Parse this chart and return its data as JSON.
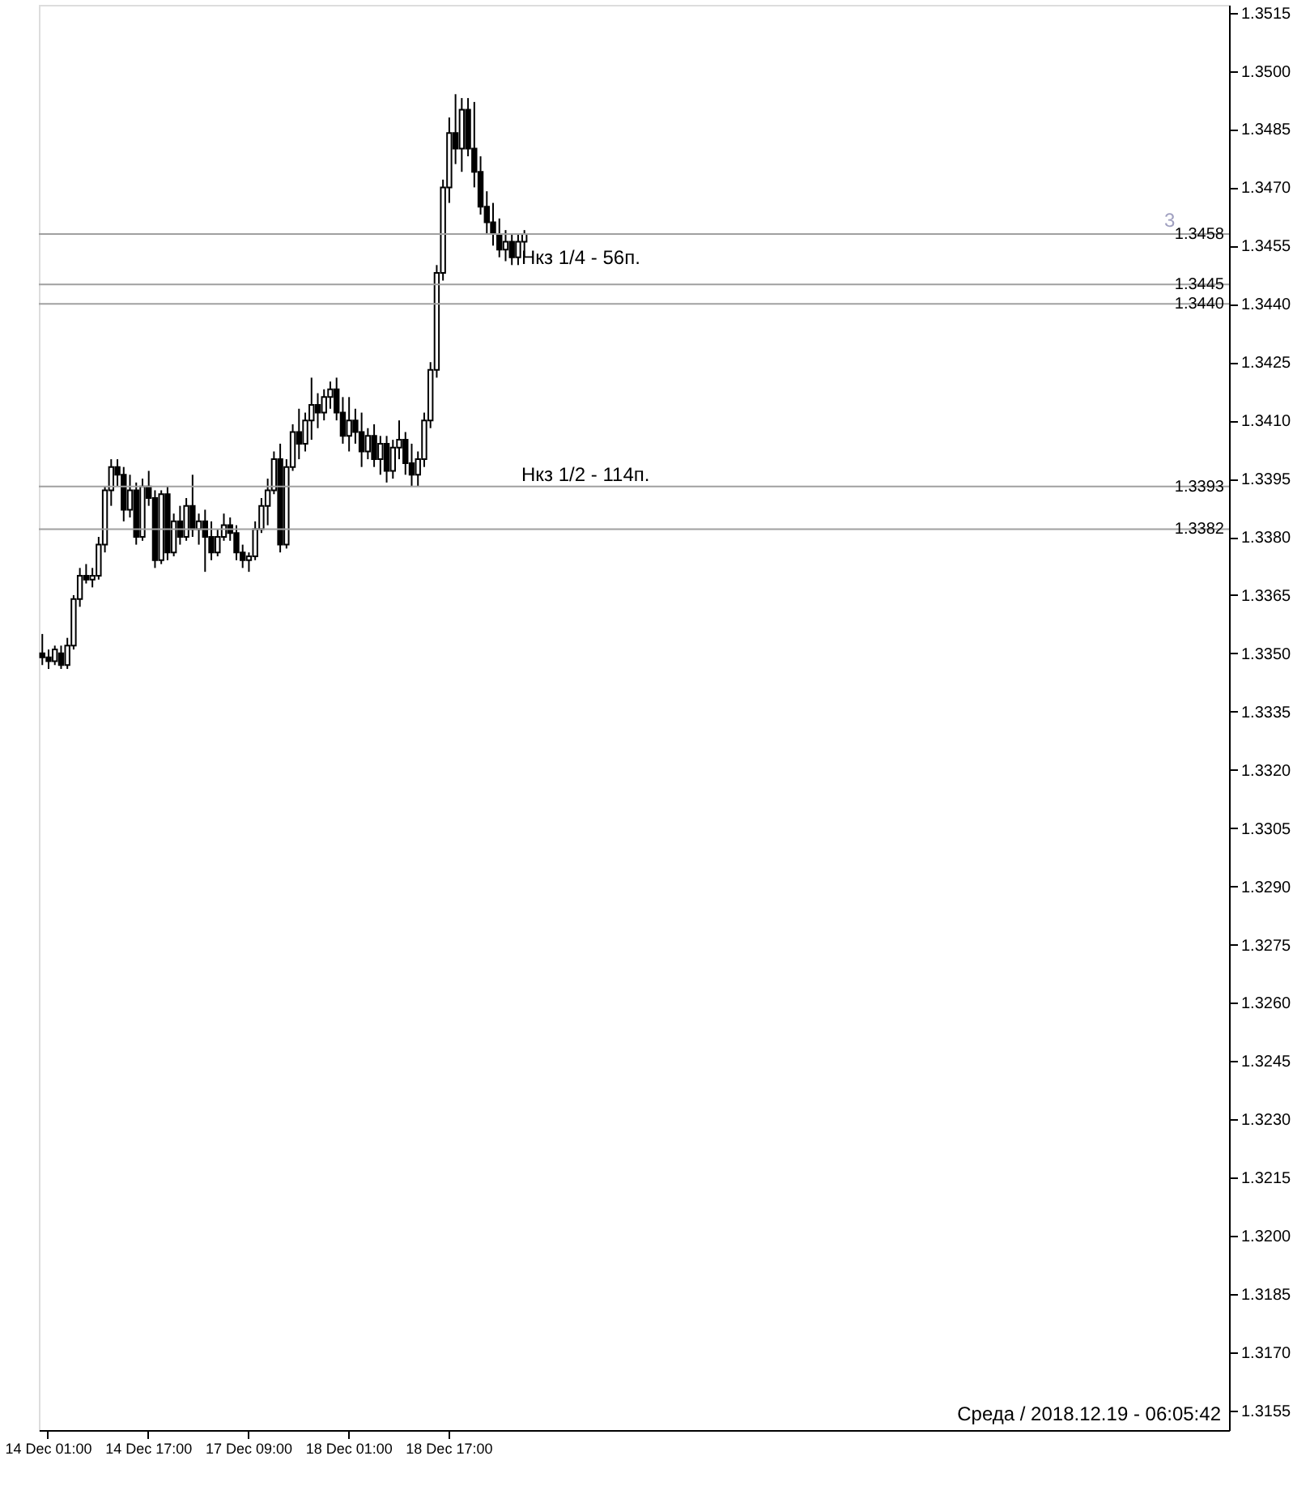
{
  "chart_data": {
    "type": "candlestick",
    "categories": [
      null,
      "14 Dec 01:00",
      null,
      null,
      null,
      null,
      null,
      null,
      null,
      null,
      null,
      null,
      null,
      null,
      null,
      null,
      null,
      "14 Dec 17:00",
      null,
      null,
      null,
      null,
      null,
      null,
      null,
      null,
      null,
      null,
      null,
      null,
      null,
      null,
      null,
      "17 Dec 09:00",
      null,
      null,
      null,
      null,
      null,
      null,
      null,
      null,
      null,
      null,
      null,
      null,
      null,
      null,
      null,
      "18 Dec 01:00",
      null,
      null,
      null,
      null,
      null,
      null,
      null,
      null,
      null,
      null,
      null,
      null,
      null,
      null,
      null,
      "18 Dec 17:00",
      null,
      null,
      null,
      null,
      null,
      null,
      null,
      null,
      null,
      null,
      null,
      null,
      null,
      null,
      null,
      null,
      null,
      null,
      null,
      null,
      null,
      null,
      null,
      null,
      null,
      null,
      null,
      null,
      null,
      null,
      null,
      null,
      null,
      null,
      null,
      null,
      null,
      null,
      null,
      null,
      null,
      null,
      null,
      null,
      null,
      null,
      null,
      null,
      null,
      null,
      null,
      null,
      null,
      null,
      null,
      null,
      null,
      null,
      null,
      null,
      null,
      null,
      null,
      null,
      null,
      null,
      null,
      null,
      null,
      null,
      null,
      null,
      null,
      null,
      null,
      null,
      null,
      null,
      null,
      null,
      null,
      null,
      null,
      null,
      null,
      null,
      null,
      null,
      null,
      null,
      null,
      null,
      null,
      null,
      null,
      null,
      null,
      null,
      null,
      null,
      null,
      null,
      null,
      null,
      null,
      null,
      null,
      null,
      null,
      null,
      null,
      null,
      null,
      null,
      null,
      null,
      null,
      null,
      null,
      null,
      null,
      null,
      null,
      null
    ],
    "ohlc": [
      [
        1.335,
        1.3355,
        1.3347,
        1.3349
      ],
      [
        1.3349,
        1.3351,
        1.3346,
        1.3348
      ],
      [
        1.3348,
        1.3352,
        1.3347,
        1.3351
      ],
      [
        1.335,
        1.3352,
        1.3346,
        1.3347
      ],
      [
        1.3347,
        1.3354,
        1.3346,
        1.3352
      ],
      [
        1.3352,
        1.3365,
        1.3351,
        1.3364
      ],
      [
        1.3364,
        1.3372,
        1.3362,
        1.337
      ],
      [
        1.337,
        1.3373,
        1.3368,
        1.3369
      ],
      [
        1.3369,
        1.3372,
        1.3367,
        1.337
      ],
      [
        1.337,
        1.338,
        1.3369,
        1.3378
      ],
      [
        1.3378,
        1.3393,
        1.3376,
        1.3392
      ],
      [
        1.3392,
        1.34,
        1.3388,
        1.3398
      ],
      [
        1.3398,
        1.34,
        1.3393,
        1.3396
      ],
      [
        1.3396,
        1.3398,
        1.3384,
        1.3387
      ],
      [
        1.3387,
        1.3396,
        1.3385,
        1.3392
      ],
      [
        1.3392,
        1.3394,
        1.3378,
        1.338
      ],
      [
        1.338,
        1.3395,
        1.3379,
        1.3393
      ],
      [
        1.3393,
        1.3397,
        1.3388,
        1.339
      ],
      [
        1.339,
        1.3392,
        1.3372,
        1.3374
      ],
      [
        1.3374,
        1.3392,
        1.3373,
        1.3391
      ],
      [
        1.3391,
        1.3393,
        1.3374,
        1.3376
      ],
      [
        1.3376,
        1.3386,
        1.3375,
        1.3384
      ],
      [
        1.3384,
        1.3388,
        1.3378,
        1.338
      ],
      [
        1.338,
        1.339,
        1.3379,
        1.3388
      ],
      [
        1.3388,
        1.3396,
        1.338,
        1.3382
      ],
      [
        1.3382,
        1.3386,
        1.3378,
        1.3384
      ],
      [
        1.3384,
        1.3387,
        1.3371,
        1.338
      ],
      [
        1.338,
        1.3384,
        1.3374,
        1.3376
      ],
      [
        1.3376,
        1.3382,
        1.3375,
        1.338
      ],
      [
        1.338,
        1.3386,
        1.3379,
        1.3383
      ],
      [
        1.3383,
        1.3385,
        1.3379,
        1.3381
      ],
      [
        1.3381,
        1.3383,
        1.3374,
        1.3376
      ],
      [
        1.3376,
        1.3378,
        1.3372,
        1.3374
      ],
      [
        1.3374,
        1.3376,
        1.3371,
        1.3375
      ],
      [
        1.3375,
        1.3384,
        1.3374,
        1.3382
      ],
      [
        1.3382,
        1.339,
        1.3381,
        1.3388
      ],
      [
        1.3388,
        1.3395,
        1.3383,
        1.3392
      ],
      [
        1.3392,
        1.3402,
        1.3391,
        1.34
      ],
      [
        1.34,
        1.3404,
        1.3376,
        1.3378
      ],
      [
        1.3378,
        1.34,
        1.3377,
        1.3398
      ],
      [
        1.3398,
        1.3409,
        1.3397,
        1.3407
      ],
      [
        1.3407,
        1.3413,
        1.34,
        1.3404
      ],
      [
        1.3404,
        1.3412,
        1.3402,
        1.341
      ],
      [
        1.341,
        1.3421,
        1.3405,
        1.3414
      ],
      [
        1.3414,
        1.3417,
        1.3408,
        1.3412
      ],
      [
        1.3412,
        1.3418,
        1.341,
        1.3416
      ],
      [
        1.3416,
        1.342,
        1.3413,
        1.3418
      ],
      [
        1.3418,
        1.3421,
        1.341,
        1.3412
      ],
      [
        1.3412,
        1.3416,
        1.3404,
        1.3406
      ],
      [
        1.3406,
        1.3416,
        1.3402,
        1.341
      ],
      [
        1.341,
        1.3413,
        1.3404,
        1.3407
      ],
      [
        1.3407,
        1.3412,
        1.3398,
        1.3402
      ],
      [
        1.3402,
        1.3408,
        1.34,
        1.3406
      ],
      [
        1.3406,
        1.3409,
        1.3398,
        1.34
      ],
      [
        1.34,
        1.3406,
        1.3396,
        1.3404
      ],
      [
        1.3404,
        1.3406,
        1.3394,
        1.3397
      ],
      [
        1.3397,
        1.3405,
        1.3395,
        1.3403
      ],
      [
        1.3403,
        1.341,
        1.34,
        1.3405
      ],
      [
        1.3405,
        1.3407,
        1.3396,
        1.3399
      ],
      [
        1.3399,
        1.3404,
        1.3393,
        1.3396
      ],
      [
        1.3396,
        1.3402,
        1.3393,
        1.34
      ],
      [
        1.34,
        1.3412,
        1.3398,
        1.341
      ],
      [
        1.341,
        1.3425,
        1.3408,
        1.3423
      ],
      [
        1.3423,
        1.345,
        1.3421,
        1.3448
      ],
      [
        1.3448,
        1.3472,
        1.3446,
        1.347
      ],
      [
        1.347,
        1.3488,
        1.3466,
        1.3484
      ],
      [
        1.3484,
        1.3494,
        1.3476,
        1.348
      ],
      [
        1.348,
        1.3493,
        1.3474,
        1.349
      ],
      [
        1.349,
        1.3493,
        1.3478,
        1.348
      ],
      [
        1.348,
        1.3492,
        1.347,
        1.3474
      ],
      [
        1.3474,
        1.3478,
        1.3463,
        1.3465
      ],
      [
        1.3465,
        1.3469,
        1.3458,
        1.3461
      ],
      [
        1.3461,
        1.3466,
        1.3455,
        1.3458
      ],
      [
        1.3458,
        1.3462,
        1.3452,
        1.3454
      ],
      [
        1.3454,
        1.3459,
        1.3451,
        1.3456
      ],
      [
        1.3456,
        1.3458,
        1.345,
        1.3452
      ],
      [
        1.3452,
        1.3458,
        1.345,
        1.3456
      ],
      [
        1.3456,
        1.3459,
        1.3452,
        1.3458
      ],
      null,
      null,
      null,
      null,
      null,
      null,
      null,
      null,
      null,
      null,
      null,
      null,
      null,
      null,
      null,
      null,
      null,
      null,
      null,
      null,
      null,
      null,
      null,
      null,
      null,
      null,
      null,
      null,
      null,
      null,
      null,
      null,
      null,
      null,
      null,
      null,
      null,
      null,
      null,
      null,
      null,
      null,
      null,
      null,
      null,
      null,
      null,
      null,
      null,
      null,
      null,
      null,
      null,
      null,
      null,
      null,
      null,
      null,
      null,
      null,
      null,
      null,
      null,
      null,
      null,
      null,
      null,
      null,
      null,
      null,
      null,
      null,
      null,
      null,
      null,
      null,
      null,
      null,
      null,
      null,
      null,
      null,
      null,
      null,
      null,
      null,
      null,
      null,
      null,
      null,
      null,
      null,
      null,
      null,
      null,
      null,
      null,
      null,
      null,
      null,
      null,
      null,
      null,
      null,
      null,
      null,
      null,
      null,
      null,
      null,
      null,
      null
    ],
    "ylim": [
      1.315,
      1.3517
    ],
    "yticks": [
      1.3155,
      {
        "value": 1.317,
        "label": "1.3170"
      },
      1.3185,
      {
        "value": 1.32,
        "label": "1.3200"
      },
      1.3215,
      {
        "value": 1.323,
        "label": "1.3230"
      },
      1.3245,
      {
        "value": 1.326,
        "label": "1.3260"
      },
      1.3275,
      {
        "value": 1.329,
        "label": "1.3290"
      },
      1.3305,
      {
        "value": 1.332,
        "label": "1.3320"
      },
      1.3335,
      {
        "value": 1.335,
        "label": "1.3350"
      },
      1.3365,
      {
        "value": 1.338,
        "label": "1.3380"
      },
      1.3395,
      {
        "value": 1.341,
        "label": "1.3410"
      },
      1.3425,
      {
        "value": 1.344,
        "label": "1.3440"
      },
      1.3455,
      {
        "value": 1.347,
        "label": "1.3470"
      },
      1.3485,
      {
        "value": 1.35,
        "label": "1.3500"
      },
      1.3515
    ],
    "ref_lines": [
      {
        "axis": "y",
        "value": 1.3458,
        "label": "1.3458",
        "color": "#a0a0a0"
      },
      {
        "axis": "y",
        "value": 1.3445,
        "label": "1.3445",
        "color": "#a0a0a0"
      },
      {
        "axis": "y",
        "value": 1.344,
        "label": "1.3440",
        "color": "#a0a0a0"
      },
      {
        "axis": "y",
        "value": 1.3393,
        "label": "1.3393",
        "color": "#a0a0a0"
      },
      {
        "axis": "y",
        "value": 1.3382,
        "label": "1.3382",
        "color": "#a0a0a0"
      }
    ],
    "annotations": [
      "Нкз 1/4 - 56п.",
      "Нкз 1/2 - 114п.",
      "3",
      "Среда  /  2018.12.19  -  06:05:42"
    ],
    "grid": false
  }
}
